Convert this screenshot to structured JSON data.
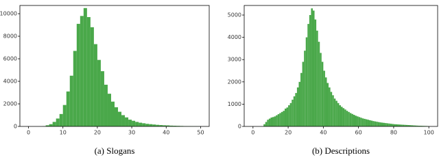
{
  "chart_data": [
    {
      "type": "histogram",
      "caption": "(a) Slogans",
      "color": "#4aa84a",
      "bins": [
        4,
        5,
        6,
        7,
        8,
        9,
        10,
        11,
        12,
        13,
        14,
        15,
        16,
        17,
        18,
        19,
        20,
        21,
        22,
        23,
        24,
        25,
        26,
        27,
        28,
        29,
        30,
        31,
        32,
        33,
        34,
        35,
        36,
        37,
        38,
        39,
        40,
        41,
        42,
        43,
        44,
        45,
        46,
        47,
        48,
        49,
        50
      ],
      "values": [
        20,
        100,
        200,
        400,
        700,
        1100,
        1900,
        3100,
        4500,
        6700,
        9100,
        9800,
        10500,
        9700,
        8800,
        7300,
        5900,
        4900,
        3700,
        2900,
        2200,
        1700,
        1300,
        1000,
        800,
        600,
        500,
        400,
        330,
        280,
        230,
        200,
        170,
        140,
        120,
        100,
        90,
        70,
        60,
        50,
        40,
        30,
        25,
        20,
        15,
        10
      ],
      "xlim": [
        -2.5,
        52.5
      ],
      "xticks": [
        0,
        10,
        20,
        30,
        40,
        50
      ],
      "ylim": [
        0,
        10730
      ],
      "yticks": [
        0,
        2000,
        4000,
        6000,
        8000,
        10000
      ]
    },
    {
      "type": "histogram",
      "caption": "(b) Descriptions",
      "color": "#4aa84a",
      "bins": [
        6,
        7,
        8,
        9,
        10,
        11,
        12,
        13,
        14,
        15,
        16,
        17,
        18,
        19,
        20,
        21,
        22,
        23,
        24,
        25,
        26,
        27,
        28,
        29,
        30,
        31,
        32,
        33,
        34,
        35,
        36,
        37,
        38,
        39,
        40,
        41,
        42,
        43,
        44,
        45,
        46,
        47,
        48,
        49,
        50,
        51,
        52,
        53,
        54,
        55,
        56,
        57,
        58,
        59,
        60,
        61,
        62,
        63,
        64,
        65,
        66,
        67,
        68,
        69,
        70,
        71,
        72,
        73,
        74,
        75,
        76,
        77,
        78,
        79,
        80,
        81,
        82,
        83,
        84,
        85,
        86,
        87,
        88,
        89,
        90,
        91,
        92,
        93,
        94,
        95,
        96,
        97,
        98,
        99,
        100
      ],
      "values": [
        100,
        200,
        300,
        350,
        400,
        420,
        450,
        500,
        550,
        600,
        650,
        700,
        800,
        850,
        950,
        1050,
        1200,
        1350,
        1500,
        1750,
        2000,
        2400,
        2900,
        3400,
        4000,
        4600,
        5000,
        5300,
        5200,
        4800,
        4300,
        3800,
        3300,
        2900,
        2500,
        2200,
        1950,
        1750,
        1550,
        1400,
        1250,
        1150,
        1050,
        950,
        880,
        820,
        760,
        700,
        650,
        600,
        560,
        520,
        480,
        450,
        420,
        390,
        360,
        340,
        320,
        300,
        280,
        260,
        240,
        225,
        210,
        195,
        180,
        170,
        160,
        150,
        140,
        130,
        120,
        110,
        100,
        95,
        90,
        85,
        80,
        75,
        70,
        65,
        60,
        55,
        50,
        45,
        40,
        35,
        30,
        28,
        25,
        22,
        20,
        15
      ],
      "xlim": [
        -5,
        105
      ],
      "xticks": [
        0,
        20,
        40,
        60,
        80,
        100
      ],
      "ylim": [
        0,
        5430
      ],
      "yticks": [
        0,
        1000,
        2000,
        3000,
        4000,
        5000
      ]
    }
  ]
}
